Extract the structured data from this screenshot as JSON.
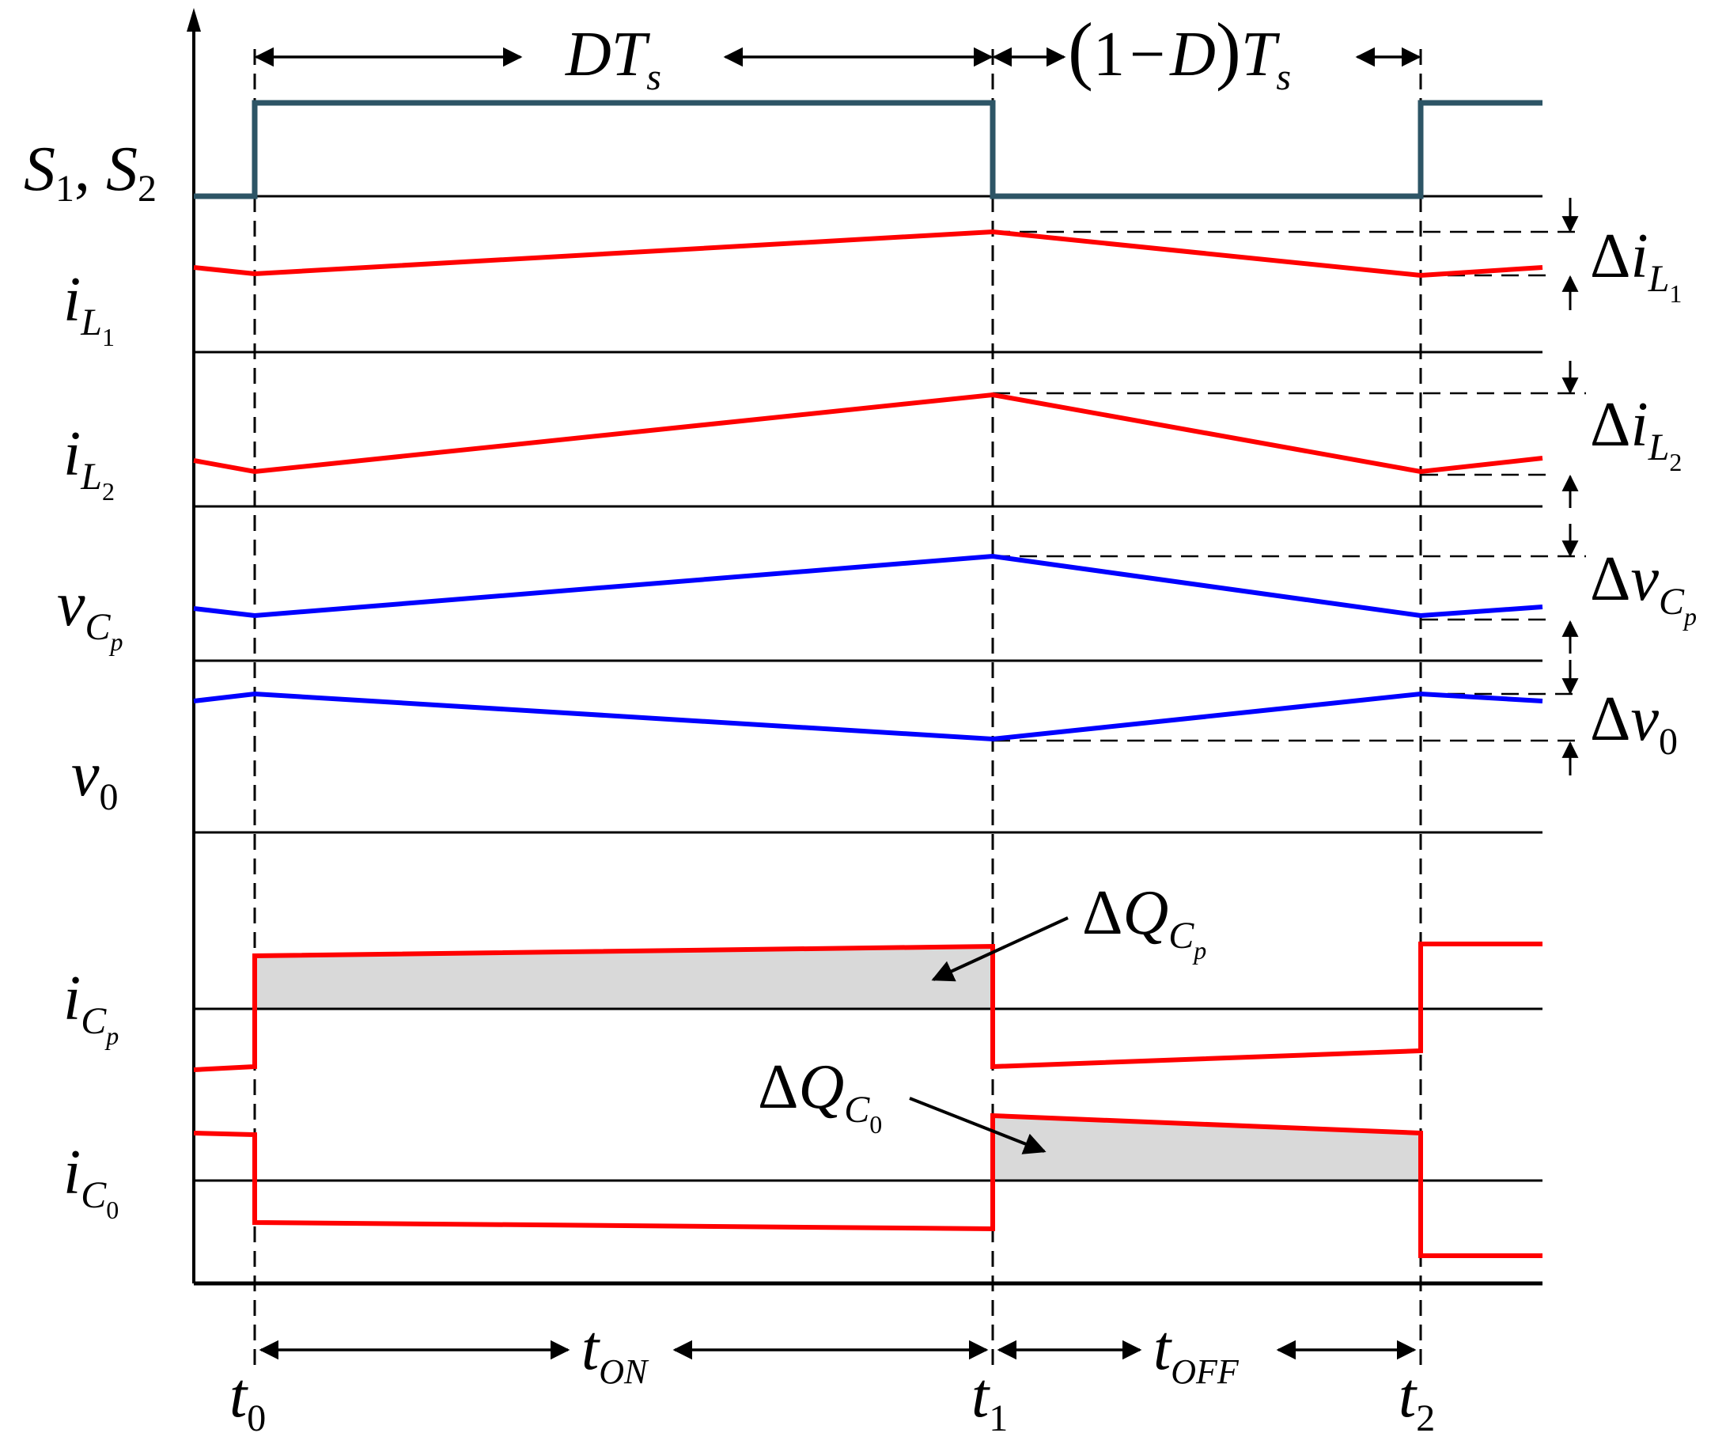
{
  "figure": {
    "signals": [
      {
        "id": "s12",
        "main_italic": "S",
        "sub1": "1",
        "sep": ", ",
        "main2": "S",
        "sub2": "2"
      },
      {
        "id": "il1",
        "main": "i",
        "sub": "L",
        "subsub": "1"
      },
      {
        "id": "il2",
        "main": "i",
        "sub": "L",
        "subsub": "2"
      },
      {
        "id": "vcp",
        "main": "v",
        "sub": "C",
        "subsub": "p"
      },
      {
        "id": "v0",
        "main": "v",
        "sub": "0"
      },
      {
        "id": "icp",
        "main": "i",
        "sub": "C",
        "subsub": "p"
      },
      {
        "id": "ic0",
        "main": "i",
        "sub": "C",
        "subsub": "0"
      }
    ],
    "ripples": [
      {
        "id": "dil1",
        "delta": "Δ",
        "main": "i",
        "sub": "L",
        "subsub": "1"
      },
      {
        "id": "dil2",
        "delta": "Δ",
        "main": "i",
        "sub": "L",
        "subsub": "2"
      },
      {
        "id": "dvcp",
        "delta": "Δ",
        "main": "v",
        "sub": "C",
        "subsub": "p"
      },
      {
        "id": "dv0",
        "delta": "Δ",
        "main": "v",
        "sub": "0"
      }
    ],
    "charges": [
      {
        "id": "dqcp",
        "delta": "Δ",
        "main": "Q",
        "sub": "C",
        "subsub": "p"
      },
      {
        "id": "dqc0",
        "delta": "Δ",
        "main": "Q",
        "sub": "C",
        "subsub": "0"
      }
    ],
    "top_intervals": {
      "on": {
        "main": "DT",
        "sub": "s"
      },
      "off": {
        "open": "(",
        "one": "1",
        "minus": "−",
        "d": "D",
        "close": ")",
        "main": "T",
        "sub": "s"
      }
    },
    "bottom_intervals": {
      "on": {
        "main": "t",
        "sub": "ON"
      },
      "off": {
        "main": "t",
        "sub": "OFF"
      }
    },
    "time_marks": [
      {
        "main": "t",
        "sub": "0"
      },
      {
        "main": "t",
        "sub": "1"
      },
      {
        "main": "t",
        "sub": "2"
      }
    ],
    "colors": {
      "switch": "#2d5566",
      "current": "#ff0000",
      "voltage": "#0000ff",
      "shade": "#d9d9d9",
      "axis": "#000000"
    }
  }
}
